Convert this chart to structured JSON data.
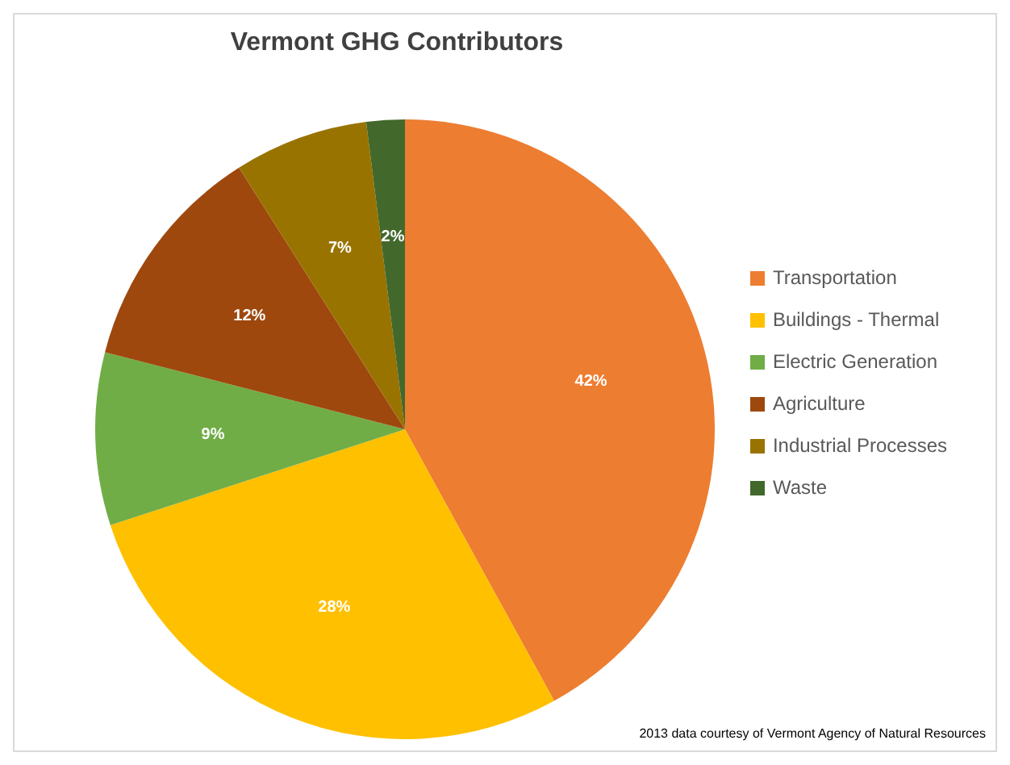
{
  "chart_data": {
    "type": "pie",
    "title": "Vermont GHG Contributors",
    "categories": [
      "Transportation",
      "Buildings - Thermal",
      "Electric Generation",
      "Agriculture",
      "Industrial Processes",
      "Waste"
    ],
    "values": [
      42,
      28,
      9,
      12,
      7,
      2
    ],
    "value_labels": [
      "42%",
      "28%",
      "9%",
      "12%",
      "7%",
      "2%"
    ],
    "colors": [
      "#ed7d31",
      "#ffc000",
      "#70ad47",
      "#9e480e",
      "#997300",
      "#43682b"
    ],
    "legend": "right",
    "annotations": [
      "2013 data courtesy of Vermont Agency of Natural Resources"
    ]
  }
}
